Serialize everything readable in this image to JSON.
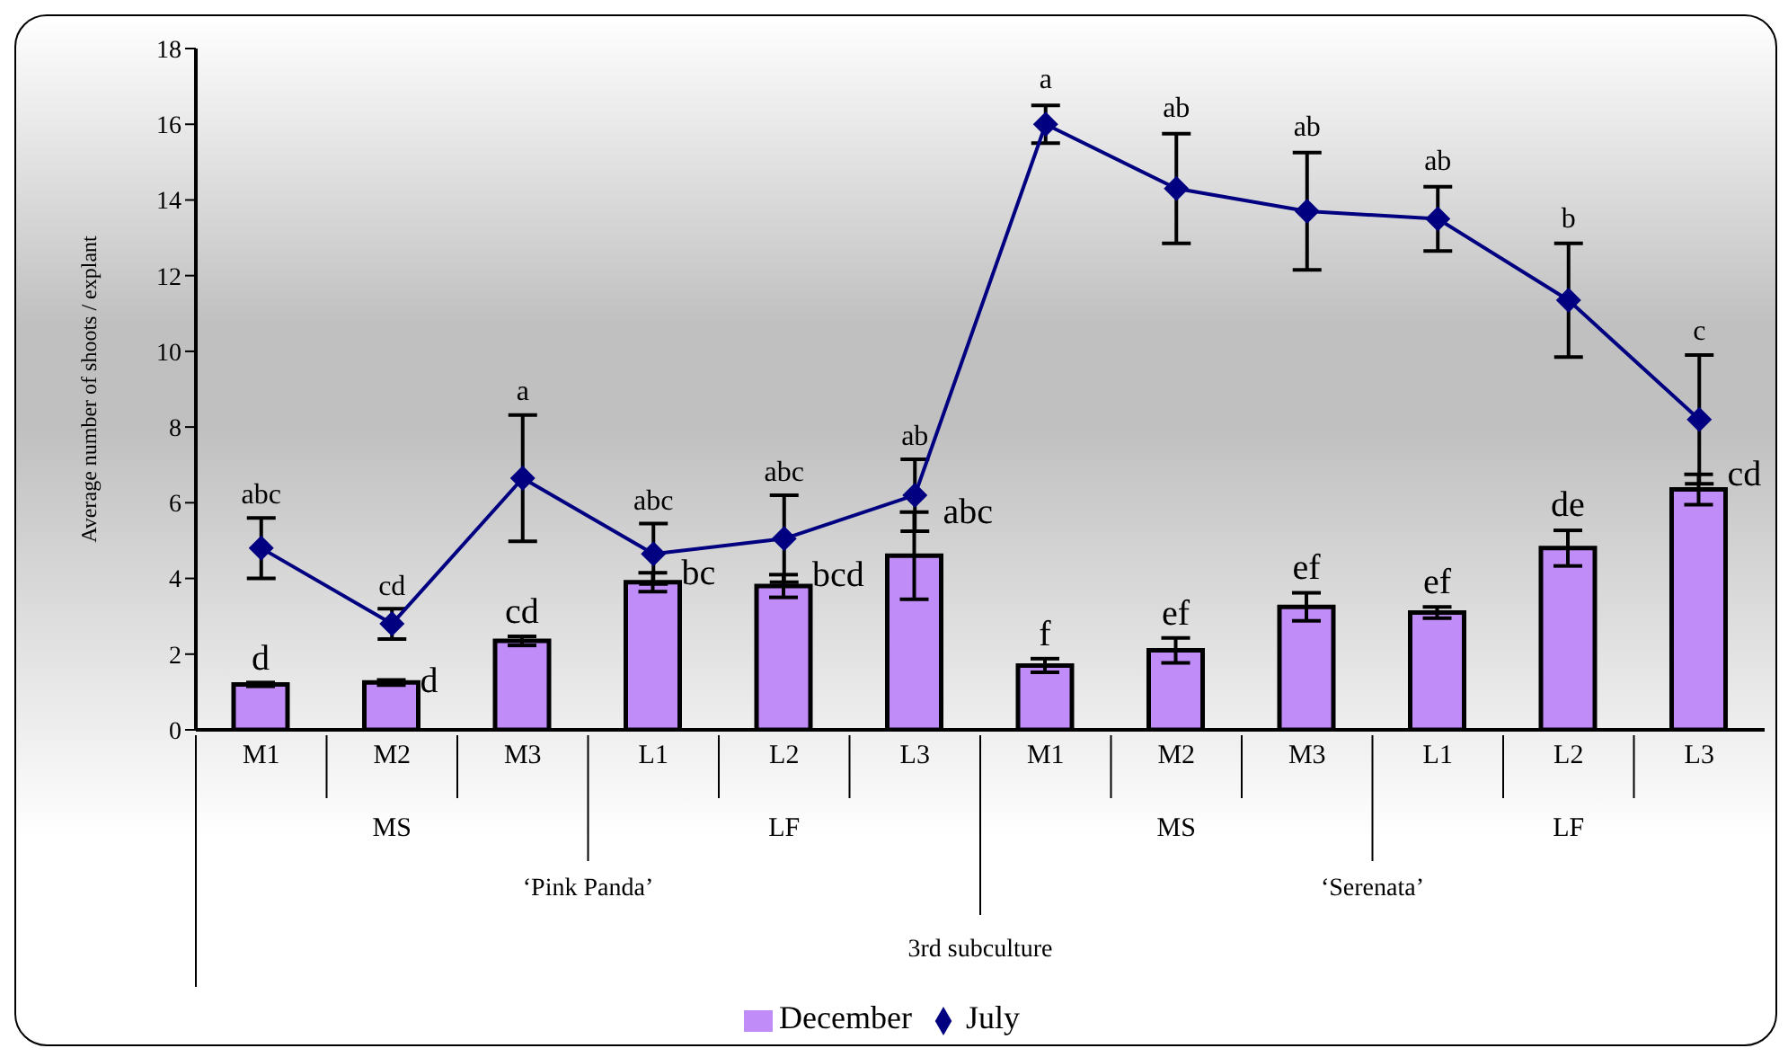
{
  "chart_data": {
    "type": "bar",
    "ylabel": "Average number of shoots / explant",
    "categories": [
      "M1",
      "M2",
      "M3",
      "L1",
      "L2",
      "L3",
      "M1",
      "M2",
      "M3",
      "L1",
      "L2",
      "L3"
    ],
    "series": [
      {
        "name": "December",
        "color": "#c08cf8",
        "values": [
          1.2,
          1.25,
          2.35,
          3.9,
          3.8,
          4.6,
          1.7,
          2.1,
          3.25,
          3.1,
          4.8,
          6.35
        ],
        "errors": [
          0.05,
          0.07,
          0.12,
          0.25,
          0.3,
          1.15,
          0.18,
          0.33,
          0.37,
          0.15,
          0.47,
          0.4
        ],
        "value_labels": [
          "d",
          "d",
          "cd",
          "bc",
          "bcd",
          "abc",
          "f",
          "ef",
          "ef",
          "ef",
          "de",
          "cd"
        ]
      },
      {
        "name": "July",
        "type": "line",
        "color": "#000080",
        "marker": "diamond",
        "values": [
          4.8,
          2.8,
          6.65,
          4.65,
          5.05,
          6.2,
          16.0,
          14.3,
          13.7,
          13.5,
          11.35,
          8.2
        ],
        "errors": [
          0.8,
          0.4,
          1.67,
          0.8,
          1.15,
          0.95,
          0.5,
          1.45,
          1.55,
          0.85,
          1.5,
          1.7
        ],
        "value_labels": [
          "abc",
          "cd",
          "a",
          "abc",
          "abc",
          "ab",
          "a",
          "ab",
          "ab",
          "ab",
          "b",
          "c"
        ]
      }
    ],
    "annotations": [
      "MS",
      "LF",
      "MS",
      "LF",
      "‘Pink Panda’",
      "‘Serenata’",
      "3rd subculture"
    ],
    "ylim": [
      0,
      18
    ],
    "yticks": [
      0,
      2,
      4,
      6,
      8,
      10,
      12,
      14,
      16,
      18
    ],
    "grid": false,
    "legend": "bottom"
  }
}
